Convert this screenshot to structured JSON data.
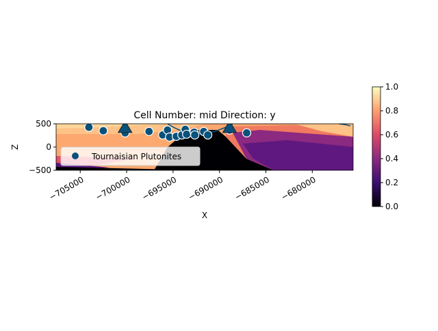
{
  "chart_data": {
    "type": "scatter",
    "title": "Cell Number: mid Direction: y",
    "xlabel": "X",
    "ylabel": "Z",
    "xlim": [
      -707600,
      -675600
    ],
    "ylim": [
      -500,
      500
    ],
    "xticks": [
      "−705000",
      "−700000",
      "−695000",
      "−690000",
      "−685000",
      "−680000"
    ],
    "xtick_values": [
      -705000,
      -700000,
      -695000,
      -690000,
      -685000,
      -680000
    ],
    "yticks": [
      "−500",
      "0",
      "500"
    ],
    "ytick_values": [
      -500,
      0,
      500
    ],
    "background": "lithology section image (magma colormap)",
    "series": [
      {
        "name": "Tournaisian Plutonites",
        "marker": "circle",
        "color": "#08517a",
        "x": [
          -704070,
          -702520,
          -700170,
          -697590,
          -696120,
          -695600,
          -695380,
          -694650,
          -694060,
          -693690,
          -693540,
          -692730,
          -692660,
          -691700,
          -691260,
          -688910,
          -687070
        ],
        "y": [
          425,
          350,
          305,
          335,
          260,
          365,
          215,
          230,
          260,
          380,
          275,
          320,
          260,
          335,
          260,
          365,
          305
        ]
      },
      {
        "marker": "triangle",
        "color": "#08517a",
        "x": [
          -700170,
          -688910
        ],
        "y": [
          430,
          430
        ]
      }
    ],
    "legend": {
      "entries": [
        "Tournaisian Plutonites"
      ],
      "placement": "lower-left"
    },
    "colorbar": {
      "ticks": [
        "0.0",
        "0.2",
        "0.4",
        "0.6",
        "0.8",
        "1.0"
      ],
      "range": [
        0,
        1
      ],
      "colormap": "magma"
    }
  }
}
